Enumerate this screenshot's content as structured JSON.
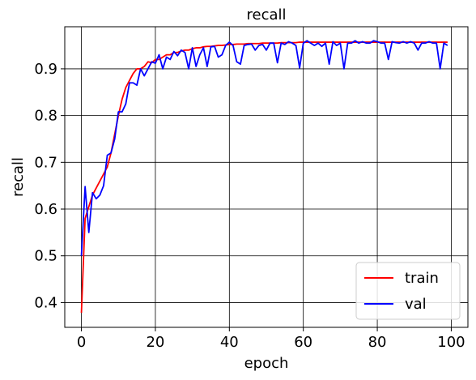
{
  "chart_data": {
    "type": "line",
    "title": "recall",
    "xlabel": "epoch",
    "ylabel": "recall",
    "xlim": [
      -4.5,
      104.5
    ],
    "ylim": [
      0.347,
      0.99
    ],
    "xticks": [
      0,
      20,
      40,
      60,
      80,
      100
    ],
    "xtick_labels": [
      "0",
      "20",
      "40",
      "60",
      "80",
      "100"
    ],
    "yticks": [
      0.4,
      0.5,
      0.6,
      0.7,
      0.8,
      0.9
    ],
    "ytick_labels": [
      "0.4",
      "0.5",
      "0.6",
      "0.7",
      "0.8",
      "0.9"
    ],
    "grid": true,
    "legend_position": "lower right",
    "series": [
      {
        "name": "train",
        "color": "#ff0000",
        "x": [
          0,
          1,
          2,
          3,
          4,
          5,
          6,
          7,
          8,
          9,
          10,
          11,
          12,
          13,
          14,
          15,
          16,
          17,
          18,
          19,
          20,
          21,
          22,
          23,
          24,
          25,
          26,
          27,
          28,
          29,
          30,
          31,
          32,
          33,
          34,
          35,
          36,
          37,
          38,
          39,
          40,
          41,
          42,
          43,
          44,
          45,
          46,
          47,
          48,
          49,
          50,
          51,
          52,
          53,
          54,
          55,
          56,
          57,
          58,
          59,
          60,
          61,
          62,
          63,
          64,
          65,
          66,
          67,
          68,
          69,
          70,
          71,
          72,
          73,
          74,
          75,
          76,
          77,
          78,
          79,
          80,
          81,
          82,
          83,
          84,
          85,
          86,
          87,
          88,
          89,
          90,
          91,
          92,
          93,
          94,
          95,
          96,
          97,
          98,
          99
        ],
        "y": [
          0.378,
          0.58,
          0.605,
          0.63,
          0.645,
          0.66,
          0.675,
          0.69,
          0.72,
          0.76,
          0.8,
          0.835,
          0.86,
          0.875,
          0.89,
          0.9,
          0.9,
          0.905,
          0.915,
          0.913,
          0.92,
          0.92,
          0.925,
          0.93,
          0.93,
          0.935,
          0.935,
          0.938,
          0.94,
          0.94,
          0.943,
          0.945,
          0.945,
          0.947,
          0.948,
          0.948,
          0.949,
          0.95,
          0.95,
          0.951,
          0.952,
          0.952,
          0.953,
          0.953,
          0.953,
          0.954,
          0.954,
          0.954,
          0.954,
          0.955,
          0.955,
          0.955,
          0.955,
          0.955,
          0.956,
          0.956,
          0.956,
          0.956,
          0.956,
          0.957,
          0.957,
          0.957,
          0.957,
          0.957,
          0.957,
          0.957,
          0.957,
          0.957,
          0.957,
          0.957,
          0.957,
          0.957,
          0.957,
          0.957,
          0.957,
          0.957,
          0.957,
          0.957,
          0.957,
          0.957,
          0.957,
          0.957,
          0.957,
          0.957,
          0.957,
          0.957,
          0.957,
          0.957,
          0.957,
          0.957,
          0.957,
          0.957,
          0.957,
          0.957,
          0.957,
          0.957,
          0.957,
          0.957,
          0.957,
          0.957
        ]
      },
      {
        "name": "val",
        "color": "#0000ff",
        "x": [
          0,
          1,
          2,
          3,
          4,
          5,
          6,
          7,
          8,
          9,
          10,
          11,
          12,
          13,
          14,
          15,
          16,
          17,
          18,
          19,
          20,
          21,
          22,
          23,
          24,
          25,
          26,
          27,
          28,
          29,
          30,
          31,
          32,
          33,
          34,
          35,
          36,
          37,
          38,
          39,
          40,
          41,
          42,
          43,
          44,
          45,
          46,
          47,
          48,
          49,
          50,
          51,
          52,
          53,
          54,
          55,
          56,
          57,
          58,
          59,
          60,
          61,
          62,
          63,
          64,
          65,
          66,
          67,
          68,
          69,
          70,
          71,
          72,
          73,
          74,
          75,
          76,
          77,
          78,
          79,
          80,
          81,
          82,
          83,
          84,
          85,
          86,
          87,
          88,
          89,
          90,
          91,
          92,
          93,
          94,
          95,
          96,
          97,
          98,
          99
        ],
        "y": [
          0.5,
          0.648,
          0.55,
          0.635,
          0.622,
          0.63,
          0.65,
          0.715,
          0.72,
          0.75,
          0.808,
          0.808,
          0.825,
          0.87,
          0.87,
          0.865,
          0.9,
          0.885,
          0.9,
          0.915,
          0.912,
          0.93,
          0.9,
          0.925,
          0.92,
          0.937,
          0.928,
          0.94,
          0.935,
          0.9,
          0.945,
          0.905,
          0.93,
          0.945,
          0.905,
          0.947,
          0.948,
          0.925,
          0.93,
          0.95,
          0.957,
          0.95,
          0.915,
          0.91,
          0.95,
          0.952,
          0.953,
          0.94,
          0.95,
          0.952,
          0.94,
          0.955,
          0.955,
          0.913,
          0.955,
          0.952,
          0.958,
          0.955,
          0.95,
          0.902,
          0.955,
          0.96,
          0.955,
          0.95,
          0.955,
          0.948,
          0.955,
          0.91,
          0.958,
          0.95,
          0.955,
          0.9,
          0.955,
          0.955,
          0.96,
          0.955,
          0.958,
          0.955,
          0.955,
          0.96,
          0.958,
          0.955,
          0.955,
          0.92,
          0.958,
          0.956,
          0.955,
          0.958,
          0.955,
          0.958,
          0.955,
          0.94,
          0.955,
          0.955,
          0.958,
          0.955,
          0.955,
          0.9,
          0.955,
          0.95
        ]
      }
    ]
  }
}
